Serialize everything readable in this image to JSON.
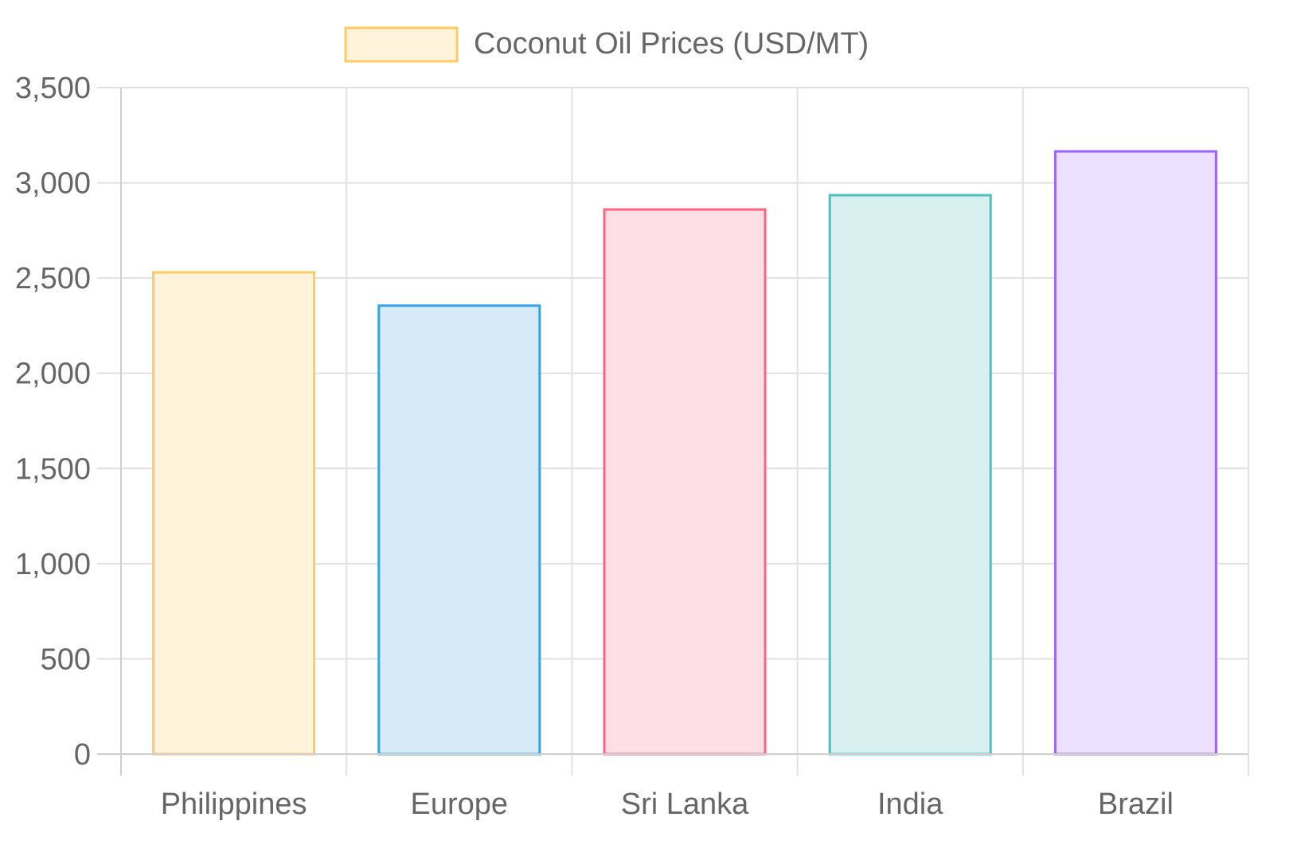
{
  "chart_data": {
    "type": "bar",
    "legend": {
      "label": "Coconut Oil Prices (USD/MT)",
      "placement": "top",
      "fill": "#fff3dc",
      "stroke": "#ffcb61"
    },
    "categories": [
      "Philippines",
      "Europe",
      "Sri Lanka",
      "India",
      "Brazil"
    ],
    "series": [
      {
        "name": "Coconut Oil Prices (USD/MT)",
        "values": [
          2530,
          2355,
          2860,
          2935,
          3165
        ]
      }
    ],
    "bar_colors": [
      {
        "fill": "#fff3dc",
        "stroke": "#ffcb61"
      },
      {
        "fill": "#d6eaf8",
        "stroke": "#36a2eb"
      },
      {
        "fill": "#ffdfe6",
        "stroke": "#ff6384"
      },
      {
        "fill": "#d8f0f0",
        "stroke": "#4bc0c0"
      },
      {
        "fill": "#ebe0ff",
        "stroke": "#9966ff"
      }
    ],
    "yticks": [
      "0",
      "500",
      "1,000",
      "1,500",
      "2,000",
      "2,500",
      "3,000",
      "3,500"
    ],
    "ylim": [
      0,
      3500
    ],
    "grid": true,
    "title": "",
    "xlabel": "",
    "ylabel": ""
  }
}
